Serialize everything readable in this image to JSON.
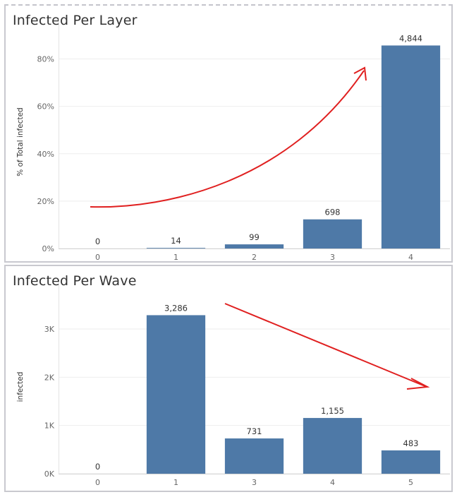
{
  "chart_data": [
    {
      "type": "bar",
      "title": "Infected Per Layer",
      "ylabel": "% of Total infected",
      "xlabel": "",
      "categories": [
        "0",
        "1",
        "2",
        "3",
        "4"
      ],
      "values_pct": [
        0.0,
        0.25,
        1.75,
        12.3,
        85.7
      ],
      "data_labels": [
        "0",
        "14",
        "99",
        "698",
        "4,844"
      ],
      "yticks": [
        "0%",
        "20%",
        "40%",
        "60%",
        "80%"
      ],
      "ytick_values": [
        0,
        20,
        40,
        60,
        80
      ],
      "ylim": [
        0,
        90
      ],
      "grid": true,
      "bar_color": "#4e79a7",
      "annotation": {
        "type": "curved-arrow",
        "color": "#e02020",
        "direction": "up-right"
      }
    },
    {
      "type": "bar",
      "title": "Infected Per Wave",
      "ylabel": "infected",
      "xlabel": "",
      "categories": [
        "0",
        "1",
        "3",
        "4",
        "5"
      ],
      "values": [
        0,
        3286,
        731,
        1155,
        483
      ],
      "data_labels": [
        "0",
        "3,286",
        "731",
        "1,155",
        "483"
      ],
      "yticks": [
        "0K",
        "1K",
        "2K",
        "3K"
      ],
      "ytick_values": [
        0,
        1000,
        2000,
        3000
      ],
      "ylim": [
        0,
        3600
      ],
      "grid": true,
      "bar_color": "#4e79a7",
      "annotation": {
        "type": "straight-arrow",
        "color": "#e02020",
        "direction": "down-right"
      }
    }
  ]
}
